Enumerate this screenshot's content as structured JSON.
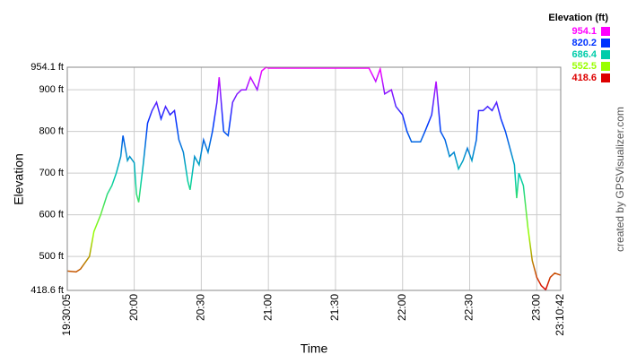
{
  "chart_data": {
    "type": "line",
    "y_label": "Elevation",
    "x_label": "Time",
    "credit": "created by GPSVisualizer.com",
    "legend": {
      "title": "Elevation (ft)",
      "values": [
        954.1,
        820.2,
        686.4,
        552.5,
        418.6
      ],
      "colors": [
        "#ff00ff",
        "#0033ff",
        "#00ccaa",
        "#99ff00",
        "#dd0000"
      ]
    },
    "xlim": [
      "19:30:05",
      "23:10:42"
    ],
    "xticks": [
      "19:30:05",
      "20:00",
      "20:30",
      "21:00",
      "21:30",
      "22:00",
      "22:30",
      "23:00",
      "23:10:42"
    ],
    "ylim": [
      418.6,
      954.1
    ],
    "yticks": [
      {
        "value": 418.6,
        "label": "418.6 ft"
      },
      {
        "value": 500,
        "label": "500 ft"
      },
      {
        "value": 600,
        "label": "600 ft"
      },
      {
        "value": 700,
        "label": "700 ft"
      },
      {
        "value": 800,
        "label": "800 ft"
      },
      {
        "value": 900,
        "label": "900 ft"
      },
      {
        "value": 954.1,
        "label": "954.1 ft"
      }
    ],
    "grid": true,
    "series": [
      {
        "name": "Elevation",
        "x": [
          "19:30:05",
          "19:34",
          "19:36",
          "19:40",
          "19:42",
          "19:45",
          "19:48",
          "19:50",
          "19:52",
          "19:54",
          "19:55",
          "19:57",
          "19:58",
          "20:00",
          "20:01",
          "20:02",
          "20:04",
          "20:06",
          "20:08",
          "20:10",
          "20:12",
          "20:14",
          "20:16",
          "20:18",
          "20:20",
          "20:22",
          "20:24",
          "20:25",
          "20:27",
          "20:29",
          "20:31",
          "20:33",
          "20:35",
          "20:37",
          "20:38",
          "20:40",
          "20:42",
          "20:44",
          "20:46",
          "20:48",
          "20:50",
          "20:52",
          "20:55",
          "20:57",
          "20:59",
          "21:00",
          "21:45",
          "21:48",
          "21:50",
          "21:52",
          "21:55",
          "21:57",
          "22:00",
          "22:02",
          "22:04",
          "22:08",
          "22:10",
          "22:13",
          "22:15",
          "22:17",
          "22:19",
          "22:21",
          "22:23",
          "22:25",
          "22:27",
          "22:29",
          "22:31",
          "22:33",
          "22:34",
          "22:36",
          "22:38",
          "22:40",
          "22:42",
          "22:44",
          "22:46",
          "22:48",
          "22:50",
          "22:51",
          "22:52",
          "22:54",
          "22:56",
          "22:58",
          "23:00",
          "23:02",
          "23:04",
          "23:06",
          "23:08",
          "23:10:42"
        ],
        "values": [
          465,
          463,
          470,
          500,
          560,
          600,
          650,
          670,
          700,
          740,
          790,
          730,
          740,
          725,
          650,
          630,
          720,
          820,
          850,
          870,
          830,
          860,
          840,
          850,
          780,
          750,
          680,
          660,
          740,
          720,
          780,
          750,
          800,
          870,
          930,
          800,
          790,
          870,
          890,
          900,
          900,
          930,
          900,
          945,
          954.1,
          952,
          952,
          920,
          950,
          890,
          900,
          860,
          840,
          800,
          775,
          775,
          800,
          840,
          920,
          800,
          780,
          740,
          750,
          710,
          730,
          760,
          730,
          780,
          850,
          850,
          860,
          850,
          870,
          830,
          800,
          760,
          720,
          640,
          700,
          670,
          570,
          490,
          450,
          430,
          420,
          450,
          460,
          455
        ]
      }
    ]
  }
}
